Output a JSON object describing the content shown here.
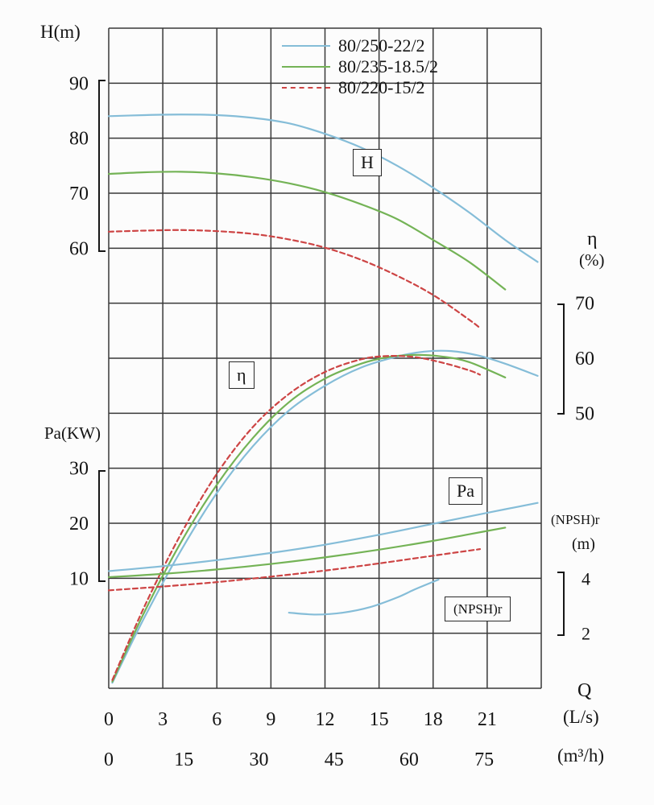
{
  "chart_data": {
    "type": "line",
    "axes": {
      "h": {
        "title": "H(m)",
        "ticks": [
          90,
          80,
          70,
          60
        ],
        "tick_rows": [
          1,
          2,
          3,
          4
        ]
      },
      "eta": {
        "title": "η",
        "unit": "(%)",
        "ticks": [
          70,
          60,
          50
        ],
        "tick_rows": [
          5,
          6,
          7
        ]
      },
      "pa": {
        "title": "Pa(KW)",
        "ticks": [
          30,
          20,
          10
        ],
        "tick_rows": [
          8,
          9,
          10
        ]
      },
      "npsh": {
        "title": "(NPSH)r",
        "unit": "(m)",
        "ticks": [
          4,
          2
        ],
        "tick_rows": [
          10,
          11
        ]
      },
      "q": {
        "title": "Q",
        "unit_ls": "(L/s)",
        "unit_m3h": "(m³/h)",
        "ticks_ls": [
          0,
          3,
          6,
          9,
          12,
          15,
          18,
          21
        ],
        "ticks_m3h": [
          0,
          15,
          30,
          45,
          60,
          75
        ],
        "range_ls": [
          0,
          24
        ]
      }
    },
    "legend": [
      {
        "label": "80/250-22/2",
        "color": "#85bdd8",
        "dashed": false
      },
      {
        "label": "80/235-18.5/2",
        "color": "#74b356",
        "dashed": false
      },
      {
        "label": "80/220-15/2",
        "color": "#cd4444",
        "dashed": true
      }
    ],
    "curve_group_labels": {
      "h": "H",
      "eta": "η",
      "pa": "Pa",
      "npsh": "(NPSH)r"
    },
    "series": [
      {
        "id": "h-80-250",
        "model": "80/250-22/2",
        "quantity": "head",
        "axis": "H",
        "color": "#85bdd8",
        "dashed": false,
        "points": [
          [
            0,
            84
          ],
          [
            2,
            84.2
          ],
          [
            4,
            84.3
          ],
          [
            6,
            84.2
          ],
          [
            8,
            83.7
          ],
          [
            10,
            82.7
          ],
          [
            12,
            80.8
          ],
          [
            14,
            78.3
          ],
          [
            16,
            75
          ],
          [
            18,
            71
          ],
          [
            20,
            66.5
          ],
          [
            22,
            61.5
          ],
          [
            23.8,
            57.5
          ]
        ]
      },
      {
        "id": "h-80-235",
        "model": "80/235-18.5/2",
        "quantity": "head",
        "axis": "H",
        "color": "#74b356",
        "dashed": false,
        "points": [
          [
            0,
            73.5
          ],
          [
            2,
            73.8
          ],
          [
            4,
            73.9
          ],
          [
            6,
            73.6
          ],
          [
            8,
            72.9
          ],
          [
            10,
            71.8
          ],
          [
            12,
            70.2
          ],
          [
            14,
            68
          ],
          [
            16,
            65.3
          ],
          [
            18,
            61.5
          ],
          [
            20,
            57.5
          ],
          [
            22,
            52.5
          ]
        ]
      },
      {
        "id": "h-80-220",
        "model": "80/220-15/2",
        "quantity": "head",
        "axis": "H",
        "color": "#cd4444",
        "dashed": true,
        "points": [
          [
            0,
            63
          ],
          [
            2,
            63.2
          ],
          [
            4,
            63.3
          ],
          [
            6,
            63.1
          ],
          [
            8,
            62.6
          ],
          [
            10,
            61.6
          ],
          [
            12,
            60.1
          ],
          [
            14,
            57.9
          ],
          [
            16,
            55
          ],
          [
            18,
            51.5
          ],
          [
            20,
            47
          ],
          [
            20.6,
            45.5
          ]
        ]
      },
      {
        "id": "eta-80-250",
        "model": "80/250-22/2",
        "quantity": "efficiency",
        "axis": "eta",
        "color": "#85bdd8",
        "dashed": false,
        "points": [
          [
            0.2,
            1
          ],
          [
            2,
            13
          ],
          [
            4,
            25
          ],
          [
            6,
            35.5
          ],
          [
            8,
            44
          ],
          [
            10,
            50.5
          ],
          [
            12,
            55
          ],
          [
            14,
            58.3
          ],
          [
            16,
            60.3
          ],
          [
            17.5,
            61.2
          ],
          [
            19,
            61.3
          ],
          [
            20.5,
            60.5
          ],
          [
            22,
            59
          ],
          [
            23.8,
            56.8
          ]
        ]
      },
      {
        "id": "eta-80-235",
        "model": "80/235-18.5/2",
        "quantity": "efficiency",
        "axis": "eta",
        "color": "#74b356",
        "dashed": false,
        "points": [
          [
            0.2,
            1.2
          ],
          [
            2,
            14
          ],
          [
            4,
            26.5
          ],
          [
            6,
            37
          ],
          [
            8,
            45.5
          ],
          [
            10,
            52
          ],
          [
            12,
            56.3
          ],
          [
            14,
            59
          ],
          [
            15.5,
            60.2
          ],
          [
            17,
            60.6
          ],
          [
            18.5,
            60.3
          ],
          [
            20,
            59.3
          ],
          [
            22,
            56.5
          ]
        ]
      },
      {
        "id": "eta-80-220",
        "model": "80/220-15/2",
        "quantity": "efficiency",
        "axis": "eta",
        "color": "#cd4444",
        "dashed": true,
        "points": [
          [
            0.2,
            1.5
          ],
          [
            2,
            15
          ],
          [
            4,
            28
          ],
          [
            6,
            39
          ],
          [
            8,
            47.5
          ],
          [
            10,
            53.5
          ],
          [
            12,
            57.5
          ],
          [
            14,
            59.8
          ],
          [
            15.5,
            60.4
          ],
          [
            17,
            60.2
          ],
          [
            18.5,
            59.2
          ],
          [
            20,
            57.8
          ],
          [
            20.6,
            57
          ]
        ]
      },
      {
        "id": "pa-80-250",
        "model": "80/250-22/2",
        "quantity": "power",
        "axis": "Pa",
        "color": "#85bdd8",
        "dashed": false,
        "points": [
          [
            0,
            11.3
          ],
          [
            3,
            12.2
          ],
          [
            6,
            13.3
          ],
          [
            9,
            14.6
          ],
          [
            12,
            16.1
          ],
          [
            15,
            17.9
          ],
          [
            18,
            19.9
          ],
          [
            21,
            21.9
          ],
          [
            23.8,
            23.7
          ]
        ]
      },
      {
        "id": "pa-80-235",
        "model": "80/235-18.5/2",
        "quantity": "power",
        "axis": "Pa",
        "color": "#74b356",
        "dashed": false,
        "points": [
          [
            0,
            10.2
          ],
          [
            3,
            10.8
          ],
          [
            6,
            11.6
          ],
          [
            9,
            12.6
          ],
          [
            12,
            13.8
          ],
          [
            15,
            15.2
          ],
          [
            18,
            16.8
          ],
          [
            20,
            18
          ],
          [
            22,
            19.2
          ]
        ]
      },
      {
        "id": "pa-80-220",
        "model": "80/220-15/2",
        "quantity": "power",
        "axis": "Pa",
        "color": "#cd4444",
        "dashed": true,
        "points": [
          [
            0,
            7.8
          ],
          [
            3,
            8.5
          ],
          [
            6,
            9.3
          ],
          [
            9,
            10.3
          ],
          [
            12,
            11.4
          ],
          [
            15,
            12.7
          ],
          [
            18,
            14.1
          ],
          [
            20.6,
            15.3
          ]
        ]
      },
      {
        "id": "npshr",
        "model": "80/250-22/2",
        "quantity": "npshr",
        "axis": "NPSH",
        "color": "#85bdd8",
        "dashed": false,
        "points": [
          [
            10,
            2.75
          ],
          [
            11.5,
            2.68
          ],
          [
            13,
            2.75
          ],
          [
            14.5,
            2.95
          ],
          [
            16,
            3.3
          ],
          [
            17,
            3.6
          ],
          [
            18.3,
            3.95
          ]
        ]
      }
    ],
    "grid": {
      "columns": 8,
      "rows": 12,
      "line_color": "#383838"
    }
  }
}
